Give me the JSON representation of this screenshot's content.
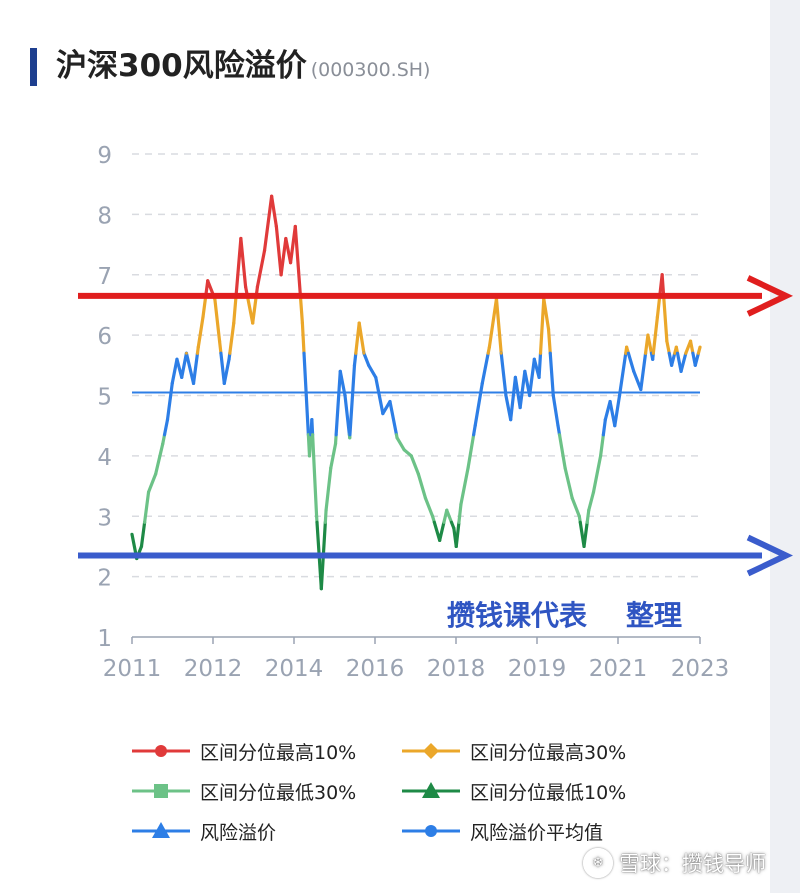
{
  "title": "沪深300风险溢价",
  "subtitle": "(000300.SH)",
  "credit": "攒钱课代表    整理",
  "watermark": {
    "text": "雪球：攒钱导师",
    "icon": "snowball-logo-icon"
  },
  "colors": {
    "top10": "#e03a3a",
    "top30": "#eba72a",
    "bottom30": "#6cc287",
    "bottom10": "#1e8a46",
    "premium": "#2d7ee6",
    "average": "#2d7ee6",
    "red_arrow": "#e01e1e",
    "blue_arrow": "#3a5ccc",
    "credit": "#2f55c2"
  },
  "chart_data": {
    "type": "line",
    "title": "沪深300风险溢价",
    "xlabel": "",
    "ylabel": "",
    "ylim": [
      1,
      9
    ],
    "yticks": [
      "1",
      "2",
      "3",
      "4",
      "5",
      "6",
      "7",
      "8",
      "9"
    ],
    "xticks": [
      "2011",
      "2012",
      "2014",
      "2016",
      "2018",
      "2019",
      "2021",
      "2023"
    ],
    "grid": true,
    "legend_position": "bottom",
    "average": 5.05,
    "thresholds": {
      "bottom10": 2.9,
      "bottom30": 4.35,
      "top30": 5.7,
      "top10": 6.65
    },
    "lines": {
      "upper_arrow": 6.65,
      "lower_arrow": 2.35
    },
    "legend": [
      {
        "label": "区间分位最高10%",
        "marker": "circle",
        "key": "top10"
      },
      {
        "label": "区间分位最高30%",
        "marker": "diamond",
        "key": "top30"
      },
      {
        "label": "区间分位最低30%",
        "marker": "square",
        "key": "bottom30"
      },
      {
        "label": "区间分位最低10%",
        "marker": "triangle",
        "key": "bottom10"
      },
      {
        "label": "风险溢价",
        "marker": "triangle",
        "key": "premium"
      },
      {
        "label": "风险溢价平均值",
        "marker": "circle",
        "key": "average"
      }
    ],
    "series": [
      {
        "name": "风险溢价",
        "x": [
          2011.0,
          2011.1,
          2011.2,
          2011.35,
          2011.5,
          2011.65,
          2011.75,
          2011.85,
          2011.95,
          2012.05,
          2012.15,
          2012.3,
          2012.4,
          2012.5,
          2012.6,
          2012.75,
          2012.85,
          2012.95,
          2013.05,
          2013.15,
          2013.3,
          2013.4,
          2013.55,
          2013.65,
          2013.8,
          2013.95,
          2014.05,
          2014.15,
          2014.25,
          2014.35,
          2014.45,
          2014.6,
          2014.75,
          2014.8,
          2014.9,
          2015.0,
          2015.1,
          2015.2,
          2015.3,
          2015.4,
          2015.5,
          2015.6,
          2015.7,
          2015.8,
          2015.9,
          2016.0,
          2016.15,
          2016.3,
          2016.45,
          2016.6,
          2016.75,
          2016.9,
          2017.05,
          2017.2,
          2017.35,
          2017.5,
          2017.65,
          2017.8,
          2017.85,
          2017.95,
          2018.1,
          2018.25,
          2018.4,
          2018.55,
          2018.7,
          2018.8,
          2018.9,
          2019.0,
          2019.1,
          2019.2,
          2019.3,
          2019.4,
          2019.5,
          2019.6,
          2019.7,
          2019.8,
          2019.9,
          2020.0,
          2020.15,
          2020.3,
          2020.45,
          2020.55,
          2020.65,
          2020.75,
          2020.9,
          2021.0,
          2021.1,
          2021.2,
          2021.3,
          2021.45,
          2021.6,
          2021.75,
          2021.9,
          2022.0,
          2022.1,
          2022.2,
          2022.3,
          2022.4,
          2022.5,
          2022.6,
          2022.7,
          2022.8,
          2022.9,
          2023.0
        ],
        "values": [
          2.7,
          2.3,
          2.5,
          3.4,
          3.7,
          4.2,
          4.6,
          5.2,
          5.6,
          5.3,
          5.7,
          5.2,
          5.8,
          6.3,
          6.9,
          6.6,
          5.9,
          5.2,
          5.6,
          6.2,
          7.6,
          6.8,
          6.2,
          6.8,
          7.4,
          8.3,
          7.8,
          7.0,
          7.6,
          7.2,
          7.8,
          6.2,
          4.0,
          4.6,
          3.0,
          1.8,
          3.1,
          3.8,
          4.2,
          5.4,
          5.0,
          4.3,
          5.5,
          6.2,
          5.7,
          5.5,
          5.3,
          4.7,
          4.9,
          4.3,
          4.1,
          4.0,
          3.7,
          3.3,
          3.0,
          2.6,
          3.1,
          2.8,
          2.5,
          3.2,
          3.8,
          4.5,
          5.2,
          5.8,
          6.6,
          5.7,
          5.0,
          4.6,
          5.3,
          4.8,
          5.4,
          5.0,
          5.6,
          5.3,
          6.6,
          6.1,
          5.0,
          4.5,
          3.8,
          3.3,
          3.0,
          2.5,
          3.1,
          3.4,
          4.0,
          4.6,
          4.9,
          4.5,
          5.0,
          5.8,
          5.4,
          5.1,
          6.0,
          5.6,
          6.3,
          7.0,
          5.9,
          5.5,
          5.8,
          5.4,
          5.7,
          5.9,
          5.5,
          5.8
        ]
      }
    ]
  }
}
